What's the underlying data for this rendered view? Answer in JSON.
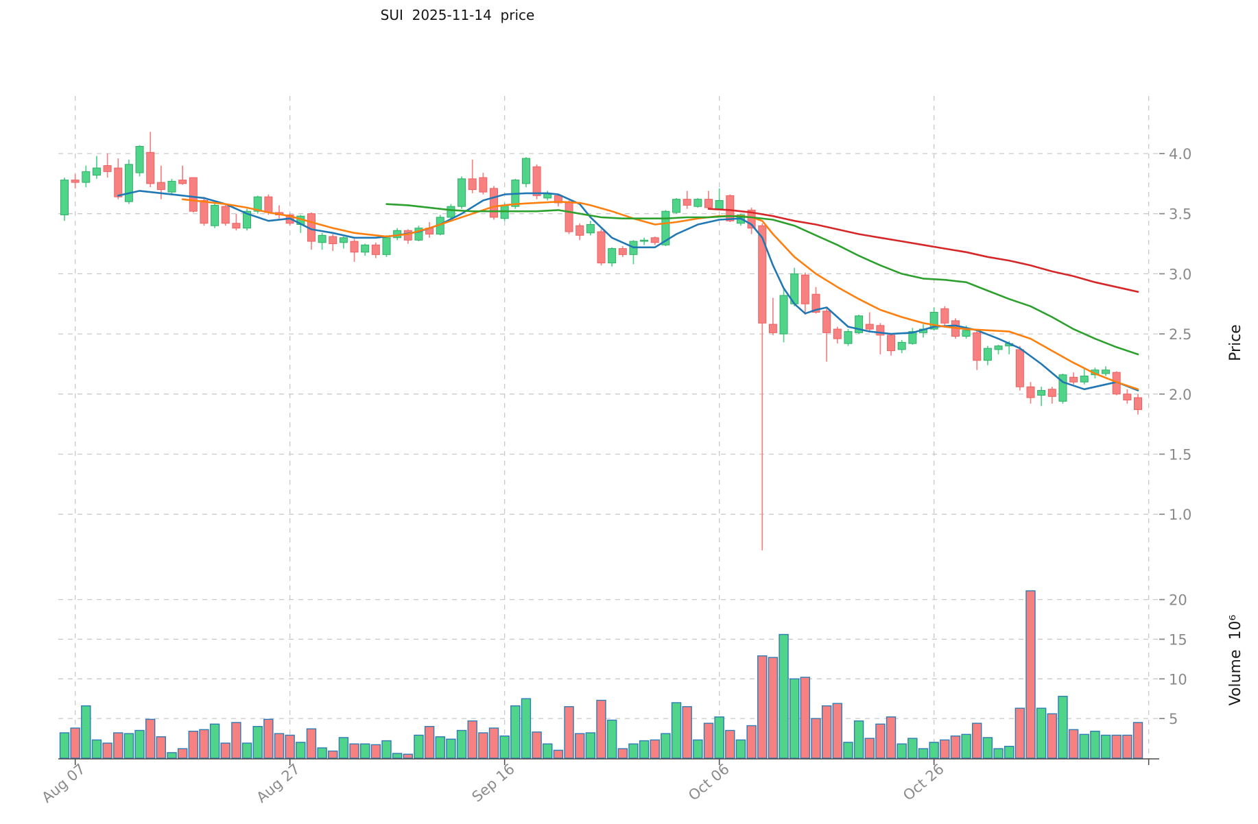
{
  "title": "SUI  2025-11-14  price",
  "price_axis_label": "Price",
  "volume_axis_label": "Volume  10⁶",
  "chart_data": {
    "type": "candlestick",
    "subpanels": [
      "price",
      "volume"
    ],
    "start_date": "2025-08-06",
    "end_date": "2025-11-14",
    "x_ticks": [
      {
        "label": "Aug 07",
        "index": 1
      },
      {
        "label": "Aug 27",
        "index": 21
      },
      {
        "label": "Sep 16",
        "index": 41
      },
      {
        "label": "Oct 06",
        "index": 61
      },
      {
        "label": "Oct 26",
        "index": 81
      }
    ],
    "extra_gridline_index": 101,
    "price_ticks": [
      {
        "label": "4.0",
        "value": 4.0
      },
      {
        "label": "3.5",
        "value": 3.5
      },
      {
        "label": "3.0",
        "value": 3.0
      },
      {
        "label": "2.5",
        "value": 2.5
      },
      {
        "label": "2.0",
        "value": 2.0
      },
      {
        "label": "1.5",
        "value": 1.5
      },
      {
        "label": "1.0",
        "value": 1.0
      }
    ],
    "volume_ticks": [
      {
        "label": "20",
        "value": 20
      },
      {
        "label": "15",
        "value": 15
      },
      {
        "label": "10",
        "value": 10
      },
      {
        "label": "5",
        "value": 5
      }
    ],
    "price_range_approx": [
      0.6,
      4.4
    ],
    "volume_range_approx": [
      0,
      25
    ],
    "grid": true,
    "candles_ohlcv": [
      [
        3.49,
        3.8,
        3.44,
        3.78,
        3.2
      ],
      [
        3.78,
        3.83,
        3.71,
        3.76,
        3.8
      ],
      [
        3.76,
        3.9,
        3.72,
        3.85,
        6.6
      ],
      [
        3.82,
        3.98,
        3.79,
        3.88,
        2.3
      ],
      [
        3.9,
        4.0,
        3.8,
        3.85,
        1.9
      ],
      [
        3.88,
        3.96,
        3.62,
        3.64,
        3.2
      ],
      [
        3.6,
        3.95,
        3.58,
        3.91,
        3.1
      ],
      [
        3.84,
        4.07,
        3.81,
        4.06,
        3.5
      ],
      [
        4.01,
        4.18,
        3.72,
        3.75,
        4.9
      ],
      [
        3.76,
        3.9,
        3.62,
        3.7,
        2.7
      ],
      [
        3.68,
        3.79,
        3.66,
        3.77,
        0.7
      ],
      [
        3.78,
        3.9,
        3.74,
        3.75,
        1.2
      ],
      [
        3.8,
        3.8,
        3.51,
        3.52,
        3.4
      ],
      [
        3.61,
        3.64,
        3.4,
        3.42,
        3.6
      ],
      [
        3.4,
        3.59,
        3.38,
        3.57,
        4.3
      ],
      [
        3.56,
        3.58,
        3.4,
        3.42,
        1.9
      ],
      [
        3.42,
        3.5,
        3.36,
        3.38,
        4.5
      ],
      [
        3.38,
        3.54,
        3.36,
        3.52,
        1.9
      ],
      [
        3.52,
        3.65,
        3.5,
        3.64,
        4.0
      ],
      [
        3.64,
        3.66,
        3.49,
        3.51,
        4.9
      ],
      [
        3.51,
        3.57,
        3.46,
        3.49,
        3.1
      ],
      [
        3.49,
        3.5,
        3.4,
        3.42,
        2.9
      ],
      [
        3.41,
        3.49,
        3.34,
        3.48,
        2.0
      ],
      [
        3.5,
        3.51,
        3.2,
        3.27,
        3.7
      ],
      [
        3.26,
        3.34,
        3.2,
        3.32,
        1.3
      ],
      [
        3.31,
        3.33,
        3.19,
        3.25,
        0.9
      ],
      [
        3.26,
        3.31,
        3.21,
        3.3,
        2.6
      ],
      [
        3.27,
        3.29,
        3.1,
        3.18,
        1.8
      ],
      [
        3.18,
        3.25,
        3.15,
        3.24,
        1.8
      ],
      [
        3.24,
        3.26,
        3.13,
        3.16,
        1.7
      ],
      [
        3.16,
        3.32,
        3.14,
        3.3,
        2.2
      ],
      [
        3.3,
        3.38,
        3.28,
        3.36,
        0.6
      ],
      [
        3.36,
        3.37,
        3.25,
        3.28,
        0.5
      ],
      [
        3.28,
        3.4,
        3.27,
        3.38,
        2.9
      ],
      [
        3.38,
        3.43,
        3.3,
        3.33,
        4.0
      ],
      [
        3.33,
        3.49,
        3.32,
        3.47,
        2.7
      ],
      [
        3.47,
        3.58,
        3.45,
        3.56,
        2.4
      ],
      [
        3.56,
        3.81,
        3.54,
        3.79,
        3.5
      ],
      [
        3.79,
        3.95,
        3.67,
        3.7,
        4.7
      ],
      [
        3.8,
        3.84,
        3.66,
        3.68,
        3.2
      ],
      [
        3.71,
        3.73,
        3.45,
        3.47,
        3.8
      ],
      [
        3.46,
        3.59,
        3.44,
        3.57,
        2.8
      ],
      [
        3.56,
        3.79,
        3.54,
        3.78,
        6.6
      ],
      [
        3.75,
        3.97,
        3.72,
        3.96,
        7.5
      ],
      [
        3.89,
        3.91,
        3.62,
        3.65,
        3.3
      ],
      [
        3.63,
        3.69,
        3.61,
        3.67,
        1.8
      ],
      [
        3.65,
        3.66,
        3.56,
        3.59,
        1.0
      ],
      [
        3.6,
        3.61,
        3.33,
        3.35,
        6.5
      ],
      [
        3.4,
        3.42,
        3.28,
        3.32,
        3.1
      ],
      [
        3.34,
        3.44,
        3.32,
        3.41,
        3.2
      ],
      [
        3.35,
        3.37,
        3.07,
        3.09,
        7.3
      ],
      [
        3.09,
        3.22,
        3.06,
        3.21,
        4.8
      ],
      [
        3.21,
        3.23,
        3.14,
        3.16,
        1.2
      ],
      [
        3.16,
        3.28,
        3.08,
        3.27,
        1.8
      ],
      [
        3.27,
        3.3,
        3.24,
        3.28,
        2.2
      ],
      [
        3.3,
        3.31,
        3.24,
        3.26,
        2.3
      ],
      [
        3.24,
        3.53,
        3.23,
        3.52,
        3.1
      ],
      [
        3.51,
        3.63,
        3.5,
        3.62,
        7.0
      ],
      [
        3.62,
        3.69,
        3.54,
        3.57,
        6.5
      ],
      [
        3.56,
        3.63,
        3.55,
        3.62,
        2.3
      ],
      [
        3.62,
        3.69,
        3.54,
        3.55,
        4.4
      ],
      [
        3.54,
        3.71,
        3.53,
        3.61,
        5.2
      ],
      [
        3.65,
        3.66,
        3.43,
        3.44,
        3.5
      ],
      [
        3.42,
        3.5,
        3.4,
        3.49,
        2.3
      ],
      [
        3.53,
        3.55,
        3.33,
        3.38,
        4.1
      ],
      [
        3.4,
        3.42,
        0.7,
        2.59,
        12.9
      ],
      [
        2.58,
        2.8,
        2.49,
        2.51,
        12.7
      ],
      [
        2.5,
        2.88,
        2.43,
        2.82,
        15.6
      ],
      [
        2.75,
        3.05,
        2.73,
        3.0,
        10.0
      ],
      [
        2.99,
        3.01,
        2.66,
        2.75,
        10.2
      ],
      [
        2.83,
        2.89,
        2.67,
        2.68,
        5.0
      ],
      [
        2.69,
        2.71,
        2.27,
        2.51,
        6.6
      ],
      [
        2.54,
        2.56,
        2.42,
        2.46,
        6.9
      ],
      [
        2.42,
        2.54,
        2.4,
        2.52,
        2.0
      ],
      [
        2.51,
        2.66,
        2.5,
        2.65,
        4.7
      ],
      [
        2.58,
        2.68,
        2.52,
        2.54,
        2.5
      ],
      [
        2.57,
        2.59,
        2.33,
        2.49,
        4.3
      ],
      [
        2.49,
        2.5,
        2.32,
        2.36,
        5.2
      ],
      [
        2.37,
        2.45,
        2.34,
        2.43,
        1.8
      ],
      [
        2.42,
        2.55,
        2.41,
        2.52,
        2.5
      ],
      [
        2.51,
        2.58,
        2.47,
        2.54,
        1.2
      ],
      [
        2.54,
        2.72,
        2.53,
        2.68,
        2.0
      ],
      [
        2.71,
        2.73,
        2.56,
        2.59,
        2.3
      ],
      [
        2.61,
        2.63,
        2.46,
        2.48,
        2.8
      ],
      [
        2.48,
        2.57,
        2.46,
        2.53,
        3.0
      ],
      [
        2.51,
        2.53,
        2.2,
        2.28,
        4.4
      ],
      [
        2.28,
        2.4,
        2.24,
        2.38,
        2.6
      ],
      [
        2.37,
        2.41,
        2.33,
        2.4,
        1.2
      ],
      [
        2.4,
        2.44,
        2.33,
        2.42,
        1.5
      ],
      [
        2.37,
        2.4,
        2.03,
        2.06,
        6.3
      ],
      [
        2.06,
        2.1,
        1.92,
        1.97,
        21.1
      ],
      [
        1.99,
        2.06,
        1.9,
        2.03,
        6.3
      ],
      [
        2.04,
        2.06,
        1.92,
        1.98,
        5.6
      ],
      [
        1.94,
        2.17,
        1.92,
        2.16,
        7.8
      ],
      [
        2.14,
        2.18,
        2.08,
        2.1,
        3.6
      ],
      [
        2.1,
        2.22,
        2.08,
        2.15,
        3.0
      ],
      [
        2.16,
        2.22,
        2.13,
        2.2,
        3.4
      ],
      [
        2.17,
        2.23,
        2.15,
        2.2,
        2.9
      ],
      [
        2.18,
        2.19,
        1.99,
        2.0,
        2.9
      ],
      [
        2.0,
        2.04,
        1.92,
        1.95,
        2.9
      ],
      [
        1.97,
        2.0,
        1.83,
        1.87,
        4.5
      ]
    ],
    "ma_lines": [
      {
        "name": "ma-fast-blue",
        "color": "#1f77b4",
        "points": [
          [
            5,
            3.65
          ],
          [
            7,
            3.69
          ],
          [
            10,
            3.66
          ],
          [
            13,
            3.63
          ],
          [
            15,
            3.58
          ],
          [
            17,
            3.5
          ],
          [
            19,
            3.44
          ],
          [
            21,
            3.46
          ],
          [
            23,
            3.37
          ],
          [
            25,
            3.34
          ],
          [
            27,
            3.3
          ],
          [
            29,
            3.3
          ],
          [
            31,
            3.32
          ],
          [
            33,
            3.35
          ],
          [
            35,
            3.41
          ],
          [
            37,
            3.5
          ],
          [
            39,
            3.61
          ],
          [
            41,
            3.66
          ],
          [
            43,
            3.67
          ],
          [
            45,
            3.67
          ],
          [
            46,
            3.66
          ],
          [
            48,
            3.58
          ],
          [
            49,
            3.47
          ],
          [
            51,
            3.3
          ],
          [
            53,
            3.22
          ],
          [
            55,
            3.22
          ],
          [
            57,
            3.33
          ],
          [
            59,
            3.41
          ],
          [
            61,
            3.45
          ],
          [
            63,
            3.46
          ],
          [
            64,
            3.41
          ],
          [
            65,
            3.3
          ],
          [
            66,
            3.07
          ],
          [
            67,
            2.88
          ],
          [
            68,
            2.75
          ],
          [
            69,
            2.67
          ],
          [
            70,
            2.7
          ],
          [
            71,
            2.72
          ],
          [
            73,
            2.56
          ],
          [
            75,
            2.52
          ],
          [
            77,
            2.5
          ],
          [
            79,
            2.51
          ],
          [
            81,
            2.56
          ],
          [
            83,
            2.57
          ],
          [
            85,
            2.53
          ],
          [
            87,
            2.46
          ],
          [
            89,
            2.38
          ],
          [
            91,
            2.25
          ],
          [
            93,
            2.1
          ],
          [
            95,
            2.04
          ],
          [
            97,
            2.08
          ],
          [
            98,
            2.1
          ],
          [
            100,
            2.03
          ]
        ]
      },
      {
        "name": "ma-mid-orange",
        "color": "#ff7f0e",
        "points": [
          [
            11,
            3.62
          ],
          [
            13,
            3.6
          ],
          [
            15,
            3.58
          ],
          [
            17,
            3.55
          ],
          [
            19,
            3.51
          ],
          [
            21,
            3.48
          ],
          [
            23,
            3.43
          ],
          [
            25,
            3.38
          ],
          [
            27,
            3.34
          ],
          [
            29,
            3.32
          ],
          [
            30,
            3.31
          ],
          [
            32,
            3.33
          ],
          [
            34,
            3.38
          ],
          [
            36,
            3.44
          ],
          [
            38,
            3.5
          ],
          [
            40,
            3.56
          ],
          [
            42,
            3.58
          ],
          [
            44,
            3.59
          ],
          [
            46,
            3.6
          ],
          [
            48,
            3.59
          ],
          [
            49,
            3.57
          ],
          [
            51,
            3.52
          ],
          [
            53,
            3.46
          ],
          [
            55,
            3.41
          ],
          [
            57,
            3.43
          ],
          [
            59,
            3.46
          ],
          [
            61,
            3.48
          ],
          [
            63,
            3.48
          ],
          [
            64,
            3.47
          ],
          [
            65,
            3.44
          ],
          [
            66,
            3.33
          ],
          [
            68,
            3.14
          ],
          [
            70,
            3.0
          ],
          [
            72,
            2.89
          ],
          [
            74,
            2.79
          ],
          [
            76,
            2.7
          ],
          [
            78,
            2.64
          ],
          [
            80,
            2.59
          ],
          [
            82,
            2.56
          ],
          [
            84,
            2.54
          ],
          [
            86,
            2.53
          ],
          [
            88,
            2.52
          ],
          [
            90,
            2.46
          ],
          [
            92,
            2.36
          ],
          [
            94,
            2.26
          ],
          [
            96,
            2.17
          ],
          [
            98,
            2.1
          ],
          [
            100,
            2.04
          ]
        ]
      },
      {
        "name": "ma-slow-green",
        "color": "#2ca02c",
        "points": [
          [
            30,
            3.58
          ],
          [
            32,
            3.57
          ],
          [
            34,
            3.55
          ],
          [
            36,
            3.53
          ],
          [
            38,
            3.52
          ],
          [
            40,
            3.52
          ],
          [
            42,
            3.52
          ],
          [
            44,
            3.52
          ],
          [
            46,
            3.53
          ],
          [
            48,
            3.5
          ],
          [
            50,
            3.47
          ],
          [
            52,
            3.46
          ],
          [
            54,
            3.46
          ],
          [
            56,
            3.46
          ],
          [
            58,
            3.47
          ],
          [
            60,
            3.47
          ],
          [
            62,
            3.48
          ],
          [
            64,
            3.47
          ],
          [
            66,
            3.45
          ],
          [
            68,
            3.4
          ],
          [
            70,
            3.32
          ],
          [
            72,
            3.24
          ],
          [
            74,
            3.15
          ],
          [
            76,
            3.07
          ],
          [
            78,
            3.0
          ],
          [
            80,
            2.96
          ],
          [
            82,
            2.95
          ],
          [
            84,
            2.93
          ],
          [
            86,
            2.86
          ],
          [
            88,
            2.79
          ],
          [
            90,
            2.73
          ],
          [
            92,
            2.64
          ],
          [
            94,
            2.54
          ],
          [
            96,
            2.46
          ],
          [
            98,
            2.39
          ],
          [
            100,
            2.33
          ]
        ]
      },
      {
        "name": "ma-long-red",
        "color": "#d62728",
        "points": [
          [
            60,
            3.54
          ],
          [
            62,
            3.53
          ],
          [
            64,
            3.51
          ],
          [
            66,
            3.48
          ],
          [
            68,
            3.44
          ],
          [
            70,
            3.41
          ],
          [
            72,
            3.37
          ],
          [
            74,
            3.33
          ],
          [
            76,
            3.3
          ],
          [
            78,
            3.27
          ],
          [
            80,
            3.24
          ],
          [
            82,
            3.21
          ],
          [
            84,
            3.18
          ],
          [
            86,
            3.14
          ],
          [
            88,
            3.11
          ],
          [
            90,
            3.07
          ],
          [
            92,
            3.02
          ],
          [
            94,
            2.98
          ],
          [
            96,
            2.93
          ],
          [
            98,
            2.89
          ],
          [
            100,
            2.85
          ]
        ]
      }
    ],
    "colors": {
      "up": "#50d489",
      "up_edge": "#2fae66",
      "down": "#f78181",
      "down_edge": "#ee6060",
      "volume_bar_edge": "#2e7bb5",
      "grid": "#c9c9c9",
      "tick_label": "#8a8a8a",
      "axis_spine": "#4a4a4a",
      "title": "#151515"
    }
  }
}
